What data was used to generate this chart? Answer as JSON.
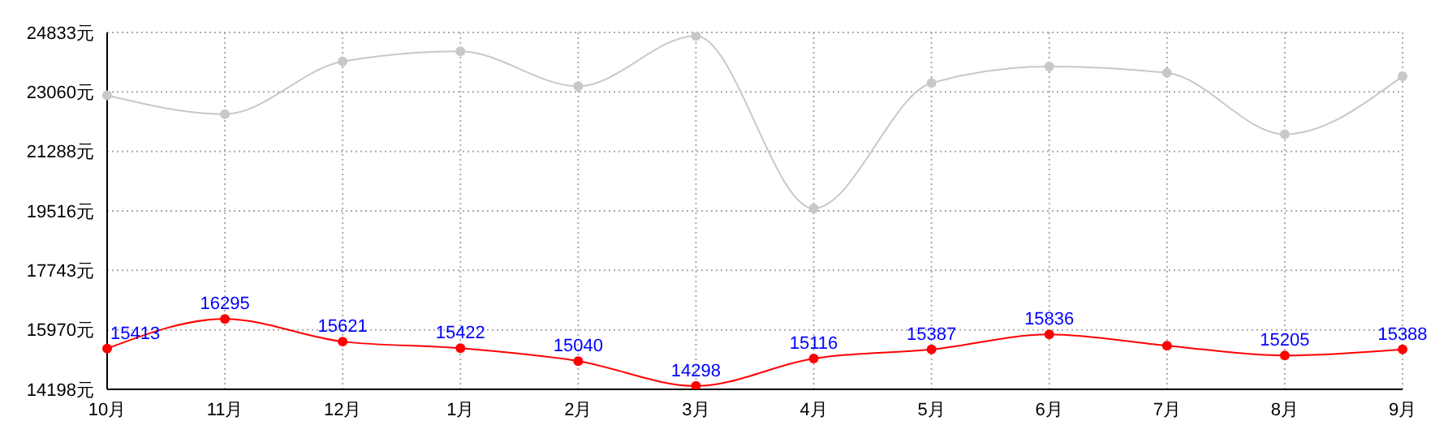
{
  "chart_data": {
    "type": "line",
    "categories": [
      "10月",
      "11月",
      "12月",
      "1月",
      "2月",
      "3月",
      "4月",
      "5月",
      "6月",
      "7月",
      "8月",
      "9月"
    ],
    "series": [
      {
        "color": "#c8c8c8",
        "values": [
          22960,
          22400,
          23970,
          24270,
          23230,
          24730,
          19590,
          23330,
          23820,
          23630,
          21800,
          23530
        ]
      },
      {
        "color": "#ff0000",
        "values": [
          15413,
          16295,
          15621,
          15422,
          15040,
          14298,
          15116,
          15387,
          15836,
          15500,
          15205,
          15388
        ],
        "value_labels": [
          "15413",
          "16295",
          "15621",
          "15422",
          "15040",
          "14298",
          "15116",
          "15387",
          "15836",
          null,
          "15205",
          "15388"
        ]
      }
    ],
    "ylim": [
      14198,
      24833
    ],
    "yticks": [
      {
        "value": 14198,
        "label": "14198元"
      },
      {
        "value": 15970,
        "label": "15970元"
      },
      {
        "value": 17743,
        "label": "17743元"
      },
      {
        "value": 19516,
        "label": "19516元"
      },
      {
        "value": 21288,
        "label": "21288元"
      },
      {
        "value": 23060,
        "label": "23060元"
      },
      {
        "value": 24833,
        "label": "24833元"
      }
    ],
    "grid": true,
    "marker": "circle"
  }
}
